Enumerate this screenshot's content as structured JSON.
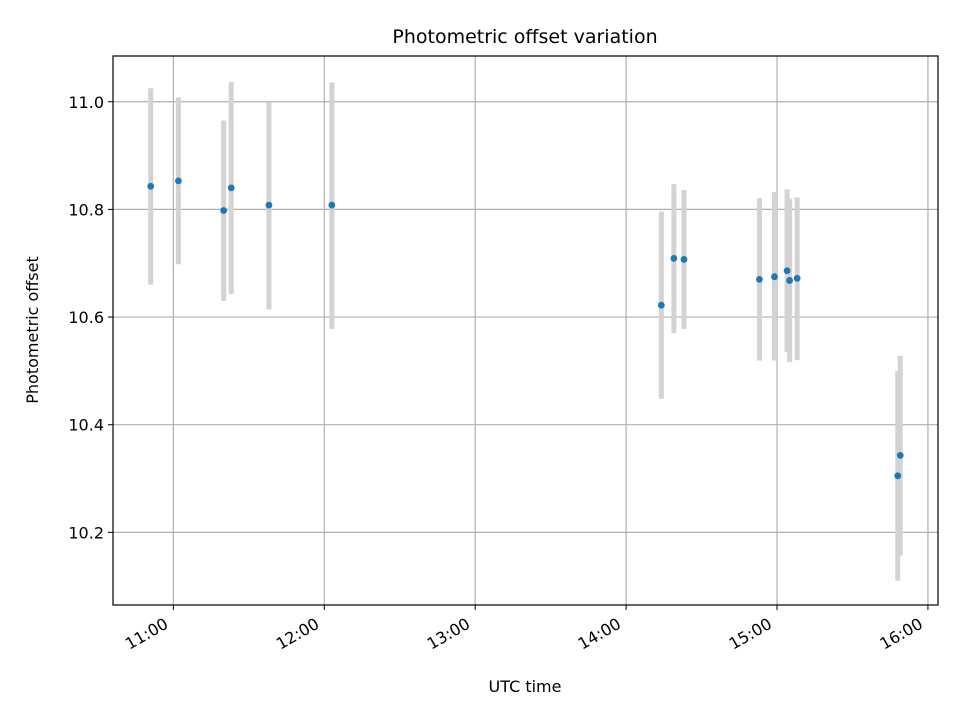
{
  "chart_data": {
    "type": "scatter",
    "title": "Photometric offset variation",
    "xlabel": "UTC time",
    "ylabel": "Photometric offset",
    "x_unit": "hours UTC",
    "xlim": [
      "10:36",
      "16:04"
    ],
    "ylim": [
      10.065,
      11.085
    ],
    "xticks": [
      "11:00",
      "12:00",
      "13:00",
      "14:00",
      "15:00",
      "16:00"
    ],
    "yticks": [
      "10.2",
      "10.4",
      "10.6",
      "10.8",
      "11.0"
    ],
    "grid": true,
    "legend": "none",
    "marker_color": "#1f77b4",
    "errorbar_color": "#d3d3d3",
    "points": [
      {
        "x": "10:51",
        "y": 10.843,
        "ylo": 10.66,
        "yhi": 11.025
      },
      {
        "x": "11:02",
        "y": 10.853,
        "ylo": 10.698,
        "yhi": 11.008
      },
      {
        "x": "11:20",
        "y": 10.798,
        "ylo": 10.63,
        "yhi": 10.965
      },
      {
        "x": "11:23",
        "y": 10.84,
        "ylo": 10.643,
        "yhi": 11.037
      },
      {
        "x": "11:38",
        "y": 10.808,
        "ylo": 10.614,
        "yhi": 11.0
      },
      {
        "x": "12:03",
        "y": 10.808,
        "ylo": 10.578,
        "yhi": 11.036
      },
      {
        "x": "14:14",
        "y": 10.622,
        "ylo": 10.448,
        "yhi": 10.796
      },
      {
        "x": "14:19",
        "y": 10.709,
        "ylo": 10.57,
        "yhi": 10.847
      },
      {
        "x": "14:23",
        "y": 10.707,
        "ylo": 10.578,
        "yhi": 10.836
      },
      {
        "x": "14:53",
        "y": 10.67,
        "ylo": 10.519,
        "yhi": 10.821
      },
      {
        "x": "14:59",
        "y": 10.675,
        "ylo": 10.519,
        "yhi": 10.832
      },
      {
        "x": "15:04",
        "y": 10.686,
        "ylo": 10.535,
        "yhi": 10.837
      },
      {
        "x": "15:05",
        "y": 10.668,
        "ylo": 10.516,
        "yhi": 10.82
      },
      {
        "x": "15:08",
        "y": 10.672,
        "ylo": 10.52,
        "yhi": 10.822
      },
      {
        "x": "15:48",
        "y": 10.305,
        "ylo": 10.11,
        "yhi": 10.5
      },
      {
        "x": "15:49",
        "y": 10.343,
        "ylo": 10.157,
        "yhi": 10.528
      }
    ]
  }
}
